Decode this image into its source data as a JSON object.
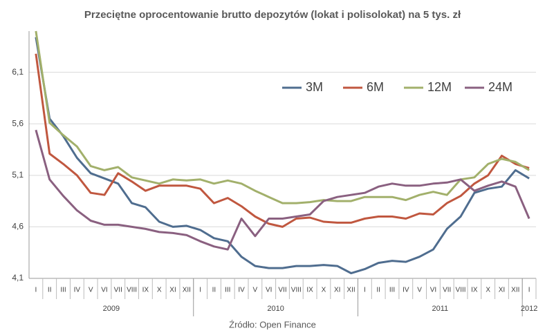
{
  "chart_data": {
    "type": "line",
    "title": "Przeciętne oprocentowanie brutto depozytów (lokat i polisolokat) na 5 tys. zł",
    "source": "Źródło: Open Finance",
    "categories": [
      "I",
      "II",
      "III",
      "IV",
      "V",
      "VI",
      "VII",
      "VIII",
      "IX",
      "X",
      "XI",
      "XII",
      "I",
      "II",
      "III",
      "IV",
      "V",
      "VI",
      "VII",
      "VIII",
      "IX",
      "X",
      "XI",
      "XII",
      "I",
      "II",
      "III",
      "IV",
      "V",
      "VI",
      "VII",
      "VIII",
      "IX",
      "X",
      "XI",
      "XII",
      "I"
    ],
    "years": [
      "2009",
      "2010",
      "2011",
      "2012"
    ],
    "ylim": [
      4.1,
      6.5
    ],
    "yticks": [
      {
        "value": 4.1,
        "label": "4,1"
      },
      {
        "value": 4.6,
        "label": "4,6"
      },
      {
        "value": 5.1,
        "label": "5,1"
      },
      {
        "value": 5.6,
        "label": "5,6"
      },
      {
        "value": 6.1,
        "label": "6,1"
      }
    ],
    "grid": true,
    "legend": "top-right",
    "series": [
      {
        "name": "3M",
        "color": "#4f6d8f",
        "values": [
          6.44,
          5.65,
          5.48,
          5.27,
          5.12,
          5.07,
          5.02,
          4.83,
          4.79,
          4.65,
          4.6,
          4.61,
          4.57,
          4.49,
          4.46,
          4.31,
          4.22,
          4.2,
          4.2,
          4.22,
          4.22,
          4.23,
          4.22,
          4.15,
          4.19,
          4.25,
          4.27,
          4.26,
          4.31,
          4.38,
          4.58,
          4.7,
          4.93,
          4.97,
          4.99,
          5.15,
          5.07
        ]
      },
      {
        "name": "6M",
        "color": "#c0573f",
        "values": [
          6.28,
          5.31,
          5.21,
          5.1,
          4.93,
          4.91,
          5.12,
          5.04,
          4.95,
          5.0,
          5.0,
          5.0,
          4.97,
          4.83,
          4.88,
          4.8,
          4.7,
          4.63,
          4.6,
          4.68,
          4.69,
          4.65,
          4.64,
          4.64,
          4.68,
          4.7,
          4.7,
          4.68,
          4.73,
          4.72,
          4.83,
          4.9,
          5.02,
          5.1,
          5.29,
          5.21,
          5.17
        ]
      },
      {
        "name": "12M",
        "color": "#a2b06b",
        "values": [
          6.5,
          5.61,
          5.49,
          5.38,
          5.19,
          5.15,
          5.18,
          5.08,
          5.05,
          5.02,
          5.06,
          5.05,
          5.06,
          5.02,
          5.05,
          5.02,
          4.95,
          4.89,
          4.83,
          4.83,
          4.84,
          4.86,
          4.85,
          4.85,
          4.89,
          4.89,
          4.89,
          4.86,
          4.91,
          4.94,
          4.91,
          5.06,
          5.08,
          5.21,
          5.26,
          5.23,
          5.15
        ]
      },
      {
        "name": "24M",
        "color": "#8a6080",
        "values": [
          5.54,
          5.06,
          4.9,
          4.76,
          4.66,
          4.62,
          4.62,
          4.6,
          4.58,
          4.55,
          4.54,
          4.52,
          4.46,
          4.41,
          4.38,
          4.68,
          4.51,
          4.68,
          4.68,
          4.7,
          4.72,
          4.85,
          4.89,
          4.91,
          4.93,
          4.99,
          5.02,
          5.0,
          5.0,
          5.02,
          5.03,
          5.06,
          4.95,
          5.0,
          5.04,
          4.99,
          4.68
        ]
      }
    ]
  }
}
